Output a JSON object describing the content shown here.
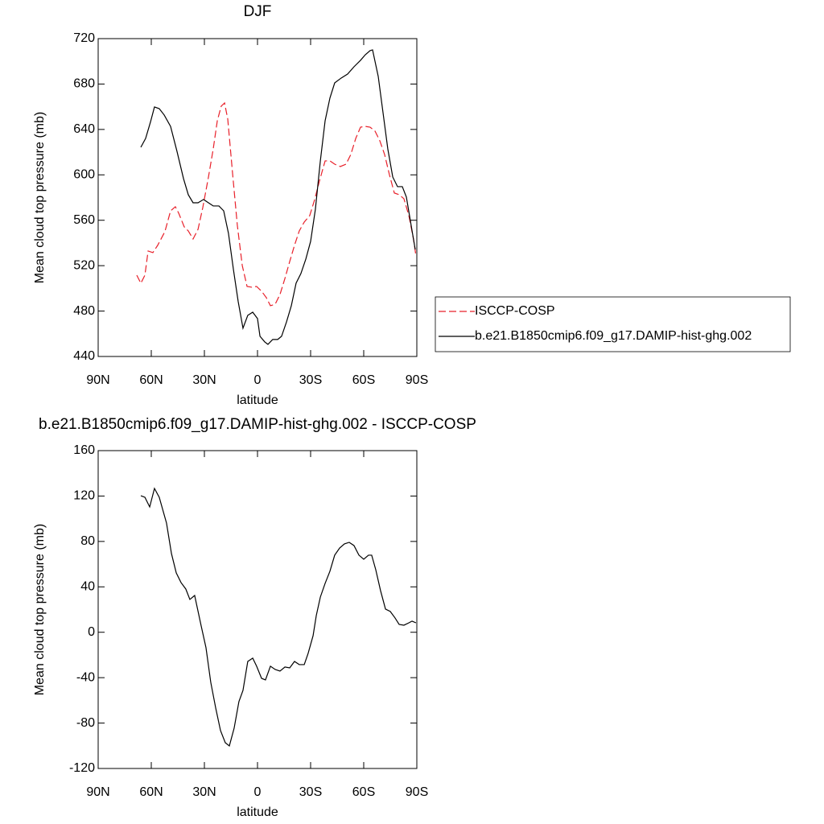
{
  "chart_data": [
    {
      "type": "line",
      "title": "DJF",
      "xlabel": "latitude",
      "ylabel": "Mean cloud top pressure (mb)",
      "xlim": [
        90,
        -90
      ],
      "xticks": [
        {
          "value": 90,
          "label": "90N"
        },
        {
          "value": 60,
          "label": "60N"
        },
        {
          "value": 30,
          "label": "30N"
        },
        0,
        {
          "value": -30,
          "label": "30S"
        },
        {
          "value": -60,
          "label": "60S"
        },
        {
          "value": -90,
          "label": "90S"
        }
      ],
      "ylim": [
        440,
        720
      ],
      "yticks": [
        440,
        480,
        520,
        560,
        600,
        640,
        680,
        720
      ],
      "legend": "right",
      "series": [
        {
          "name": "ISCCP-COSP",
          "color": "#e8202a",
          "dash": "dashed",
          "x": [
            68.2,
            65.9,
            63.6,
            61.8,
            59.1,
            56.4,
            52.3,
            49.1,
            46.4,
            44.5,
            41.4,
            39.1,
            36.4,
            33.6,
            30.9,
            27.7,
            25,
            22.7,
            20.5,
            18.6,
            16.8,
            14.1,
            11.4,
            8.6,
            5.9,
            3.2,
            0.5,
            -2.3,
            -5,
            -7.3,
            -10,
            -12.7,
            -15.5,
            -18.2,
            -20.9,
            -23.6,
            -26.4,
            -29.5,
            -32.3,
            -35,
            -38.2,
            -40.9,
            -43.6,
            -46.8,
            -50,
            -52.7,
            -55.5,
            -58.2,
            -60.9,
            -63.6,
            -66.4,
            -69.1,
            -71.8,
            -74.5,
            -77.3,
            -80,
            -82.7,
            -85.5,
            -88.2,
            -89.5
          ],
          "values": [
            511.6,
            504.5,
            511.6,
            532.9,
            531.5,
            537.9,
            550,
            568.3,
            571.9,
            566.2,
            554.2,
            550.6,
            543.5,
            552,
            571.2,
            598.1,
            622.9,
            647.7,
            660.5,
            663.3,
            649.1,
            601.6,
            555.6,
            520.1,
            501.7,
            501,
            501.7,
            497.5,
            491.8,
            484.7,
            486.1,
            494.6,
            508.8,
            523.7,
            537.9,
            550.6,
            558.4,
            564.1,
            578.3,
            594.6,
            612.3,
            612.3,
            609.4,
            607.3,
            609.4,
            617.9,
            632.1,
            642,
            642.7,
            642,
            638.5,
            630,
            617.9,
            600.2,
            584,
            582.5,
            579,
            564.1,
            542.8,
            528.6
          ]
        },
        {
          "name": "b.e21.B1850cmip6.f09_g17.DAMIP-hist-ghg.002",
          "color": "#000000",
          "dash": "solid",
          "x": [
            65.9,
            63.2,
            60.5,
            58.2,
            55.5,
            52.7,
            49.1,
            45.5,
            41.8,
            39.1,
            36.4,
            33.6,
            30.5,
            27.7,
            25,
            21.8,
            19.1,
            16.4,
            13.6,
            10.9,
            8.2,
            5.5,
            2.7,
            0,
            -1.4,
            -4.1,
            -5.9,
            -8.6,
            -11.4,
            -13.6,
            -16.4,
            -19.1,
            -21.8,
            -24.5,
            -27.3,
            -30,
            -32.7,
            -35.5,
            -38.2,
            -40.9,
            -43.6,
            -47.3,
            -50.9,
            -54.5,
            -58.2,
            -60.9,
            -63.6,
            -65,
            -68.2,
            -70.9,
            -73.6,
            -76.4,
            -79.1,
            -81.8,
            -84.1,
            -86.4,
            -89.1
          ],
          "values": [
            624.3,
            632.1,
            646.3,
            659.8,
            658.3,
            652.7,
            642.7,
            620.8,
            596.7,
            582.5,
            575.4,
            575.4,
            578.3,
            575.4,
            572.6,
            572.6,
            568.3,
            548.5,
            516.6,
            488.3,
            464.9,
            476.2,
            479,
            473.4,
            457.8,
            452.8,
            450.7,
            455,
            455,
            457.8,
            470.5,
            484.7,
            504.6,
            513,
            525.8,
            541.4,
            569.7,
            612.3,
            647.7,
            667.6,
            681,
            685.3,
            688.8,
            695.2,
            700.9,
            705.8,
            709.4,
            710.1,
            686.7,
            654.8,
            622.9,
            598.1,
            589.6,
            589.6,
            580.4,
            559.1,
            534.3
          ]
        }
      ]
    },
    {
      "type": "line",
      "title": "b.e21.B1850cmip6.f09_g17.DAMIP-hist-ghg.002 - ISCCP-COSP",
      "xlabel": "latitude",
      "ylabel": "Mean cloud top pressure (mb)",
      "xlim": [
        90,
        -90
      ],
      "xticks": [
        {
          "value": 90,
          "label": "90N"
        },
        {
          "value": 60,
          "label": "60N"
        },
        {
          "value": 30,
          "label": "30N"
        },
        0,
        {
          "value": -30,
          "label": "30S"
        },
        {
          "value": -60,
          "label": "60S"
        },
        {
          "value": -90,
          "label": "90S"
        }
      ],
      "ylim": [
        -120,
        160
      ],
      "yticks": [
        -120,
        -80,
        -40,
        0,
        40,
        80,
        120,
        160
      ],
      "series": [
        {
          "color": "#000000",
          "dash": "solid",
          "x": [
            65.9,
            63.6,
            60.9,
            58.2,
            55.5,
            51.4,
            48.6,
            45.9,
            43.2,
            40.5,
            38.2,
            35.5,
            31.8,
            29.1,
            26.4,
            23.6,
            20.9,
            18.2,
            15.9,
            13.2,
            10.5,
            8.2,
            5.5,
            2.7,
            0.5,
            -2.3,
            -4.5,
            -7.3,
            -10,
            -12.7,
            -15.5,
            -18.2,
            -20.9,
            -23.6,
            -26.4,
            -28.6,
            -31.4,
            -33.2,
            -35.5,
            -38.2,
            -40.9,
            -43.6,
            -46.4,
            -49.1,
            -51.8,
            -54.5,
            -57.3,
            -60,
            -62.7,
            -64.5,
            -66.8,
            -69.5,
            -72.3,
            -75,
            -77.7,
            -80,
            -82.7,
            -85.5,
            -87.3,
            -89.5
          ],
          "values": [
            120.3,
            118.9,
            110.4,
            126.7,
            118.9,
            96.2,
            69.3,
            52.3,
            43.8,
            38.1,
            28.9,
            32.4,
            5.5,
            -13.6,
            -44.1,
            -66.8,
            -86.6,
            -97.3,
            -100.1,
            -84.5,
            -61.1,
            -51.2,
            -25.7,
            -22.8,
            -29.9,
            -40.6,
            -42,
            -29.9,
            -32.8,
            -34.2,
            -30.6,
            -31.4,
            -25.7,
            -28.5,
            -28.5,
            -18.6,
            -3,
            14.7,
            31,
            43.1,
            53.7,
            67.9,
            74.2,
            77.8,
            79.2,
            76.4,
            67.9,
            64.3,
            67.9,
            67.9,
            55.1,
            36.7,
            20.4,
            18.3,
            12.6,
            6.9,
            6.2,
            8.3,
            9.8,
            8.3
          ]
        }
      ]
    }
  ]
}
